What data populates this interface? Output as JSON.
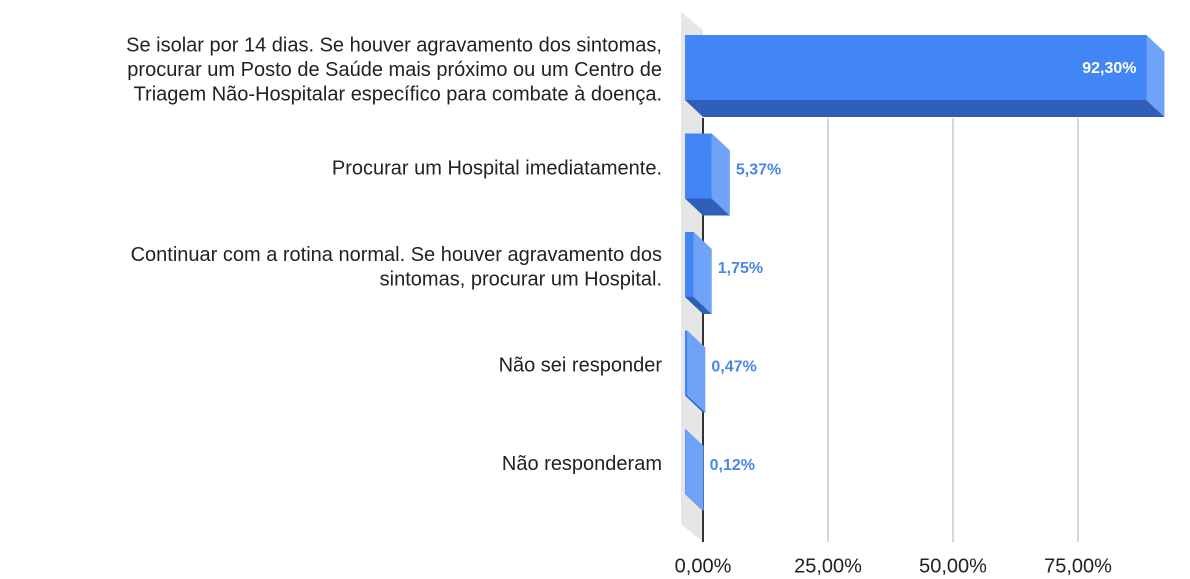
{
  "chart_data": {
    "type": "bar3d_horizontal",
    "categories": [
      [
        "Se isolar por 14 dias. Se houver agravamento dos sintomas,",
        "procurar um Posto de Saúde mais próximo ou um Centro de",
        "Triagem Não-Hospitalar específico para combate à doença."
      ],
      [
        "Procurar um Hospital imediatamente."
      ],
      [
        "Continuar com a rotina normal. Se houver agravamento dos",
        "sintomas, procurar um Hospital."
      ],
      [
        "Não sei responder"
      ],
      [
        "Não responderam"
      ]
    ],
    "values": [
      92.3,
      5.37,
      1.75,
      0.47,
      0.12
    ],
    "value_labels": [
      "92,30%",
      "5,37%",
      "1,75%",
      "0,47%",
      "0,12%"
    ],
    "color": "#4285f4",
    "xlim": [
      0,
      97
    ],
    "xticks": [
      {
        "value": 0,
        "label": "0,00%"
      },
      {
        "value": 25,
        "label": "25,00%"
      },
      {
        "value": 50,
        "label": "50,00%"
      },
      {
        "value": 75,
        "label": "75,00%"
      }
    ],
    "grid": true
  }
}
